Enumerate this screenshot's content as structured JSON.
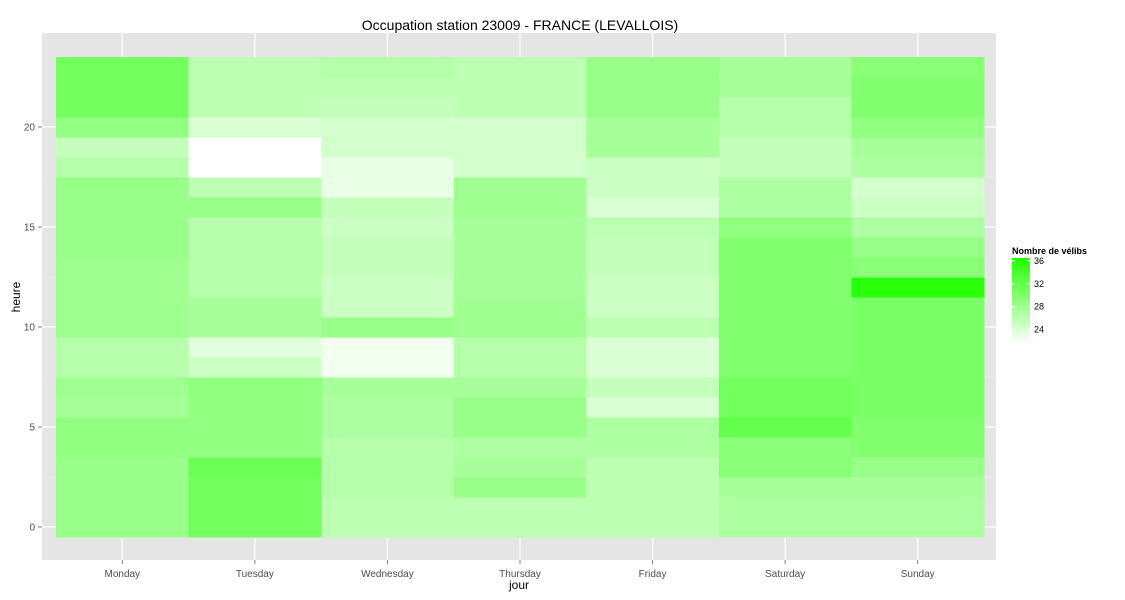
{
  "chart_data": {
    "type": "heatmap",
    "title": "Occupation station 23009 - FRANCE (LEVALLOIS)",
    "xlabel": "jour",
    "ylabel": "heure",
    "x_categories": [
      "Monday",
      "Tuesday",
      "Wednesday",
      "Thursday",
      "Friday",
      "Saturday",
      "Sunday"
    ],
    "y_hours": [
      0,
      1,
      2,
      3,
      4,
      5,
      6,
      7,
      8,
      9,
      10,
      11,
      12,
      13,
      14,
      15,
      16,
      17,
      18,
      19,
      20,
      21,
      22,
      23
    ],
    "y_ticks": [
      0,
      5,
      10,
      15,
      20
    ],
    "grid": true,
    "legend": {
      "title": "Nombre de vélibs",
      "position": "right",
      "ticks": [
        24,
        28,
        32,
        36
      ],
      "range": [
        21.5,
        36.5
      ],
      "low_color": "#ffffff",
      "high_color": "#22ff00"
    },
    "values": [
      [
        28.5,
        28.5,
        28.5,
        28.5,
        29.0,
        29.0,
        27.5,
        28.0,
        26.5,
        26.5,
        28.0,
        28.0,
        28.0,
        28.0,
        28.5,
        28.5,
        28.5,
        28.5,
        26.5,
        25.5,
        29.0,
        31.0,
        31.0,
        31.0
      ],
      [
        31.0,
        31.0,
        31.0,
        31.5,
        29.0,
        29.0,
        29.0,
        29.0,
        25.0,
        23.5,
        27.5,
        27.5,
        26.5,
        26.5,
        26.5,
        26.5,
        28.5,
        26.0,
        21.5,
        21.5,
        24.0,
        26.0,
        26.0,
        26.0
      ],
      [
        26.0,
        26.0,
        26.5,
        26.5,
        26.5,
        27.0,
        27.0,
        27.5,
        22.5,
        22.5,
        28.5,
        25.0,
        25.0,
        25.5,
        25.5,
        25.0,
        25.5,
        23.0,
        23.0,
        24.5,
        24.5,
        25.5,
        26.0,
        26.5
      ],
      [
        26.0,
        26.0,
        28.5,
        27.5,
        27.0,
        28.5,
        28.5,
        27.5,
        26.5,
        26.5,
        28.0,
        28.0,
        27.5,
        27.5,
        27.5,
        27.5,
        28.0,
        28.0,
        24.5,
        24.5,
        24.5,
        26.0,
        26.0,
        26.0
      ],
      [
        26.0,
        26.0,
        26.0,
        26.0,
        27.0,
        27.0,
        24.0,
        25.5,
        24.0,
        24.0,
        26.0,
        25.0,
        25.0,
        25.5,
        25.5,
        26.0,
        24.0,
        25.0,
        25.0,
        27.5,
        27.5,
        28.5,
        28.5,
        28.5
      ],
      [
        27.0,
        27.0,
        27.5,
        29.5,
        29.5,
        32.0,
        31.0,
        31.0,
        30.0,
        30.0,
        30.0,
        30.0,
        30.0,
        30.0,
        30.0,
        29.0,
        27.0,
        27.0,
        25.5,
        25.5,
        26.5,
        26.5,
        27.5,
        27.5
      ],
      [
        27.0,
        27.0,
        27.5,
        28.5,
        30.0,
        30.0,
        30.5,
        30.5,
        30.5,
        30.5,
        30.5,
        30.5,
        36.0,
        29.5,
        28.5,
        27.0,
        25.0,
        24.5,
        27.0,
        27.5,
        29.0,
        30.0,
        30.0,
        29.5
      ]
    ]
  }
}
